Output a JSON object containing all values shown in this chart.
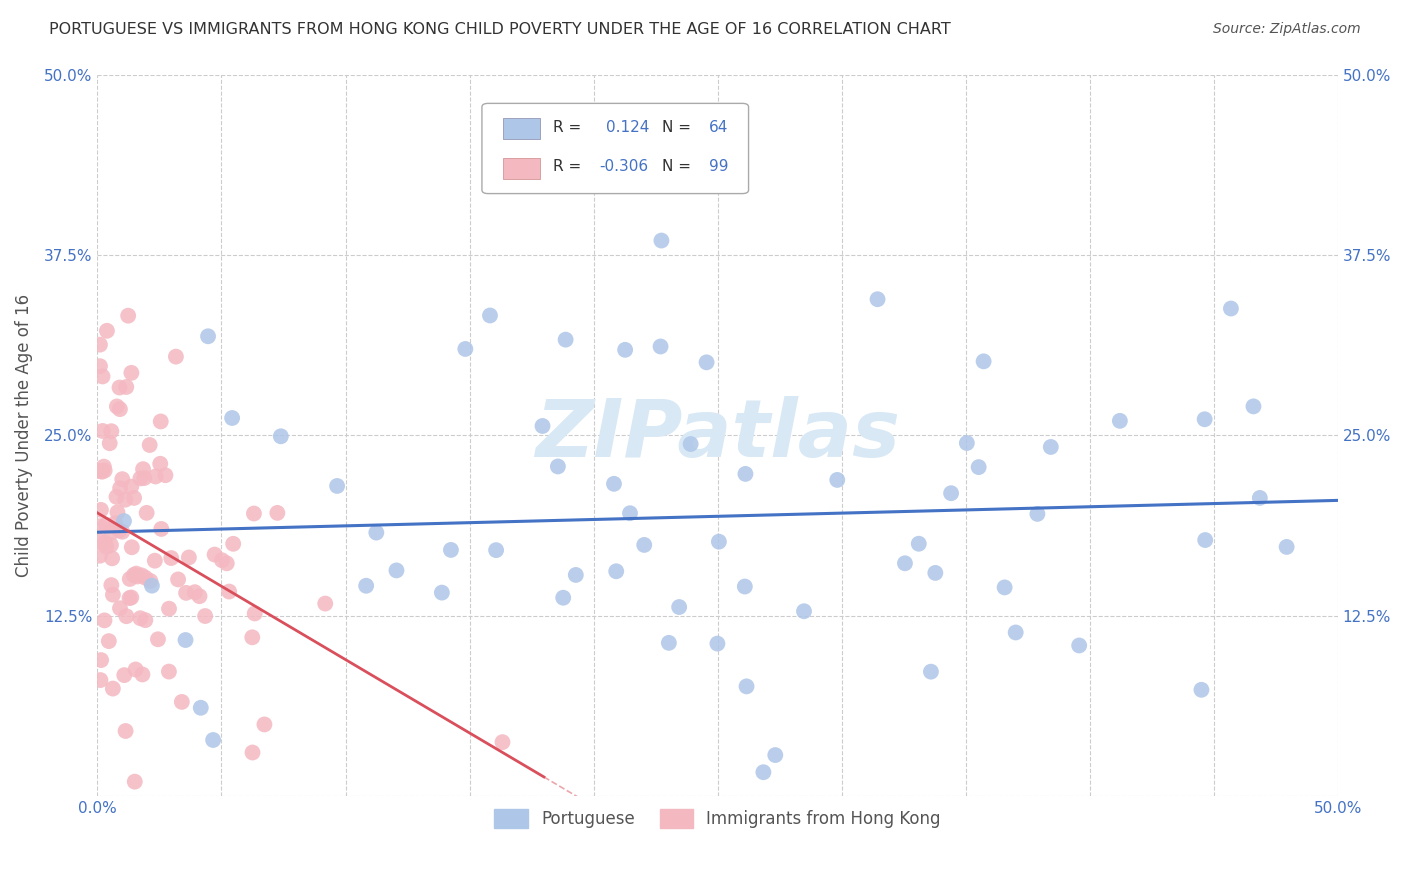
{
  "title": "PORTUGUESE VS IMMIGRANTS FROM HONG KONG CHILD POVERTY UNDER THE AGE OF 16 CORRELATION CHART",
  "source": "Source: ZipAtlas.com",
  "ylabel": "Child Poverty Under the Age of 16",
  "xlim": [
    0.0,
    0.5
  ],
  "ylim": [
    0.0,
    0.5
  ],
  "series": [
    {
      "name": "Portuguese",
      "color": "#aec6e8",
      "line_color": "#4472c4",
      "R": 0.124,
      "N": 64
    },
    {
      "name": "Immigrants from Hong Kong",
      "color": "#f4b8c1",
      "line_color": "#d94f5c",
      "R": -0.306,
      "N": 99
    }
  ],
  "background_color": "#ffffff",
  "grid_color": "#cccccc",
  "title_color": "#333333",
  "source_color": "#555555",
  "watermark": "ZIPatlas",
  "watermark_color": "#d8e8f5",
  "legend_R_color": "#4472c4",
  "tick_label_color": "#4472c4"
}
